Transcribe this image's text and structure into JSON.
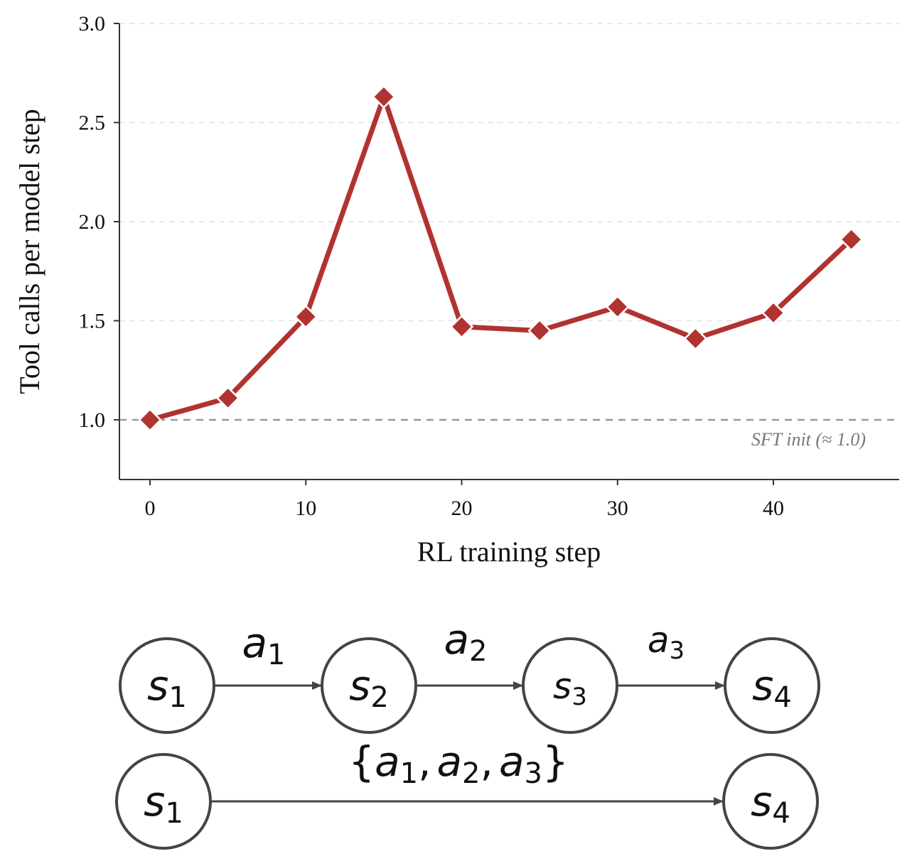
{
  "chart_data": {
    "type": "line",
    "xlabel": "RL training step",
    "ylabel": "Tool calls per model step",
    "xlim": [
      -2,
      48
    ],
    "ylim": [
      0.7,
      3.0
    ],
    "xticks": [
      0,
      10,
      20,
      30,
      40
    ],
    "xtick_labels": [
      "0",
      "10",
      "20",
      "30",
      "40"
    ],
    "yticks": [
      1.0,
      1.5,
      2.0,
      2.5,
      3.0
    ],
    "ytick_labels": [
      "1.0",
      "1.5",
      "2.0",
      "2.5",
      "3.0"
    ],
    "grid": "horizontal dashed",
    "marker": "diamond",
    "series": [
      {
        "x": [
          0,
          5,
          10,
          15,
          20,
          25,
          30,
          35,
          40,
          45
        ],
        "y": [
          1.0,
          1.11,
          1.52,
          2.63,
          1.47,
          1.45,
          1.57,
          1.41,
          1.54,
          1.91
        ],
        "color": "#b03330"
      }
    ],
    "reference_line": {
      "y": 1.0,
      "style": "dashed",
      "color": "#999999",
      "label": "SFT init (≈ 1.0)"
    }
  },
  "diagram": {
    "row1": {
      "states": [
        {
          "symbol": "s",
          "index": "1"
        },
        {
          "symbol": "s",
          "index": "2"
        },
        {
          "symbol": "s",
          "index": "3"
        },
        {
          "symbol": "s",
          "index": "4"
        }
      ],
      "actions": [
        {
          "symbol": "a",
          "index": "1"
        },
        {
          "symbol": "a",
          "index": "2"
        },
        {
          "symbol": "a",
          "index": "3"
        }
      ]
    },
    "row2": {
      "states": [
        {
          "symbol": "s",
          "index": "1"
        },
        {
          "symbol": "s",
          "index": "4"
        }
      ],
      "action_set": {
        "open_brace": "{",
        "close_brace": "}",
        "separator": ",",
        "items": [
          {
            "symbol": "a",
            "index": "1"
          },
          {
            "symbol": "a",
            "index": "2"
          },
          {
            "symbol": "a",
            "index": "3"
          }
        ]
      }
    },
    "colors": {
      "node_stroke": "#444444",
      "arrow": "#444444"
    }
  }
}
